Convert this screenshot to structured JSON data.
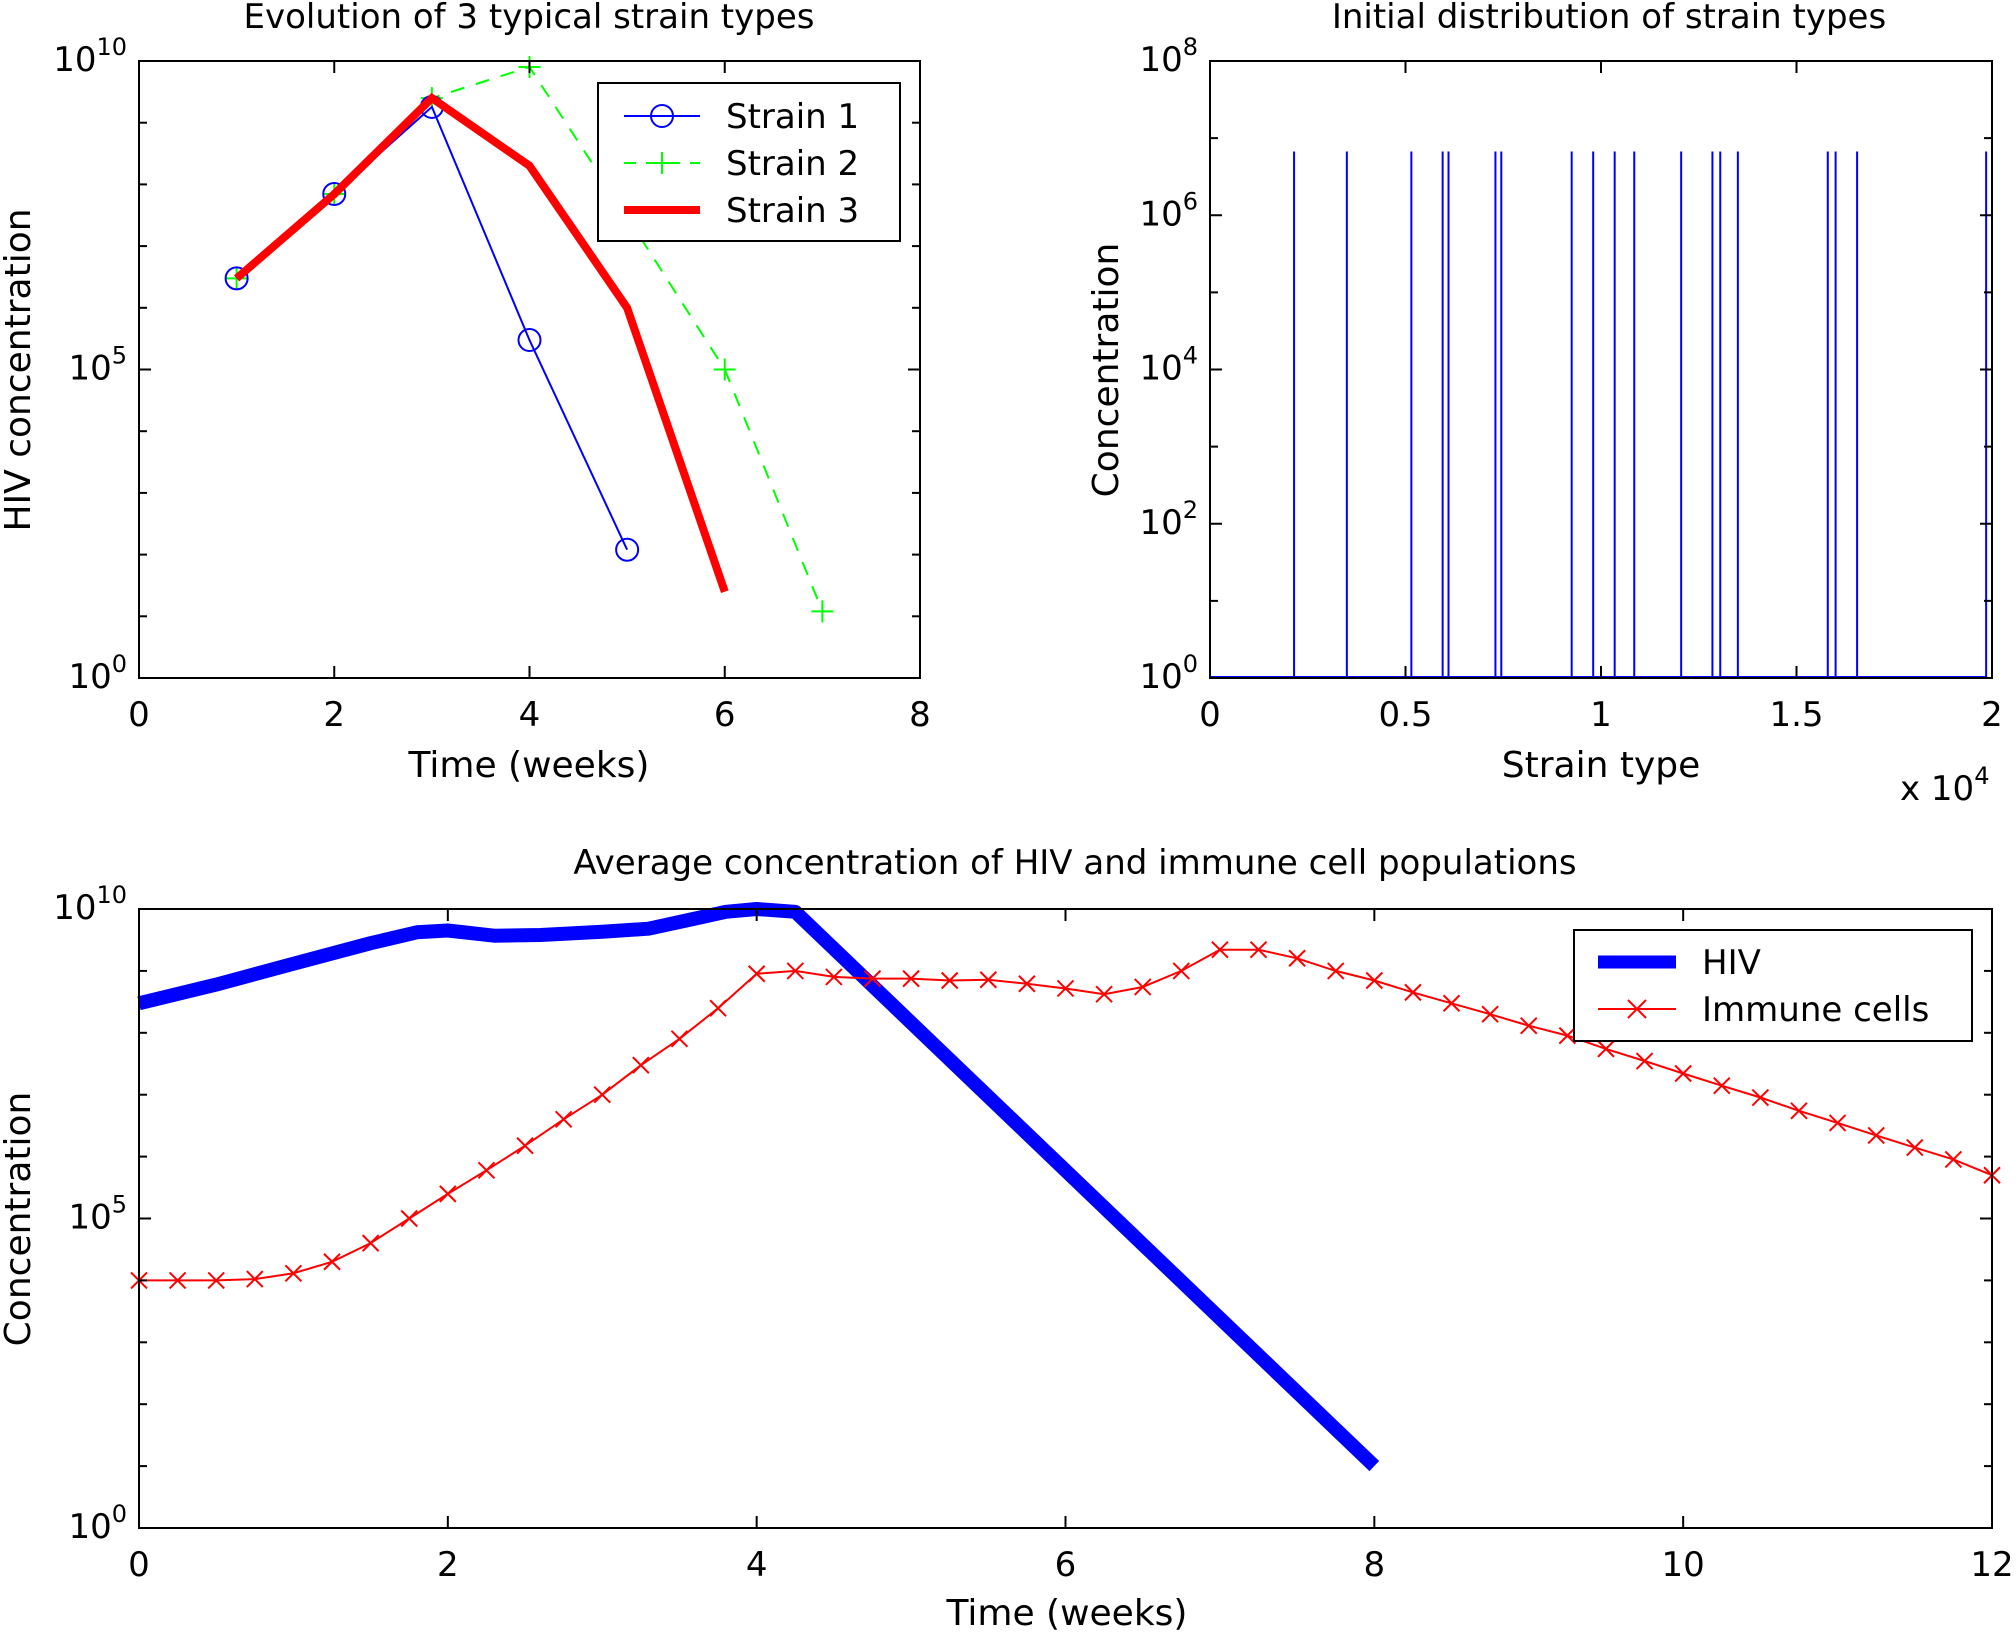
{
  "chart_data": [
    {
      "type": "line",
      "title": "Evolution of 3 typical strain types",
      "xlabel": "Time (weeks)",
      "ylabel": "HIV concentration",
      "xlim": [
        0,
        8
      ],
      "ylim": [
        1,
        10000000000
      ],
      "yscale": "log",
      "xticks": [
        0,
        2,
        4,
        6,
        8
      ],
      "xtick_labels": [
        "0",
        "2",
        "4",
        "6",
        "8"
      ],
      "yticks": [
        {
          "base": "10",
          "exp": "0",
          "value": 1
        },
        {
          "base": "10",
          "exp": "5",
          "value": 100000
        },
        {
          "base": "10",
          "exp": "10",
          "value": 10000000000
        }
      ],
      "grid": false,
      "legend_position": "top-right",
      "series": [
        {
          "name": "Strain 1",
          "color": "#0000ff",
          "style": "solid",
          "marker": "circle",
          "x": [
            1,
            2,
            3,
            4,
            5
          ],
          "y": [
            3000000,
            70000000,
            1800000000,
            300000,
            120
          ]
        },
        {
          "name": "Strain 2",
          "color": "#00ff00",
          "style": "dashed",
          "marker": "plus",
          "x": [
            1,
            2,
            3,
            4,
            5,
            6,
            7
          ],
          "y": [
            3000000,
            70000000,
            2500000000,
            8000000000,
            30000000,
            100000,
            12
          ]
        },
        {
          "name": "Strain 3",
          "color": "#ff0000",
          "style": "solid",
          "marker": "none",
          "x": [
            1,
            2,
            3,
            4,
            5,
            6
          ],
          "y": [
            3000000,
            70000000,
            2500000000,
            200000000,
            1000000,
            25
          ]
        }
      ]
    },
    {
      "type": "bar",
      "title": "Initial distribution of strain types",
      "xlabel": "Strain type",
      "ylabel": "Concentration",
      "xlim": [
        0,
        20000
      ],
      "ylim": [
        1,
        100000000
      ],
      "yscale": "log",
      "x_multiplier": {
        "base": "x 10",
        "exp": "4"
      },
      "xticks": [
        0,
        5000,
        10000,
        15000,
        20000
      ],
      "xtick_labels": [
        "0",
        "0.5",
        "1",
        "1.5",
        "2"
      ],
      "yticks": [
        {
          "base": "10",
          "exp": "0",
          "value": 1
        },
        {
          "base": "10",
          "exp": "2",
          "value": 100
        },
        {
          "base": "10",
          "exp": "4",
          "value": 10000
        },
        {
          "base": "10",
          "exp": "6",
          "value": 1000000
        },
        {
          "base": "10",
          "exp": "8",
          "value": 100000000
        }
      ],
      "grid": false,
      "color": "#0000ff",
      "spike_height": 6700000,
      "spikes_x": [
        2150,
        3500,
        5150,
        5950,
        6100,
        7300,
        7450,
        9250,
        9800,
        10350,
        10850,
        12050,
        12850,
        13050,
        13500,
        15800,
        16000,
        16550,
        19850
      ]
    },
    {
      "type": "line",
      "title": "Average concentration of HIV and immune cell populations",
      "xlabel": "Time (weeks)",
      "ylabel": "Concentration",
      "xlim": [
        0,
        12
      ],
      "ylim": [
        1,
        10000000000
      ],
      "yscale": "log",
      "xticks": [
        0,
        2,
        4,
        6,
        8,
        10,
        12
      ],
      "xtick_labels": [
        "0",
        "2",
        "4",
        "6",
        "8",
        "10",
        "12"
      ],
      "yticks": [
        {
          "base": "10",
          "exp": "0",
          "value": 1
        },
        {
          "base": "10",
          "exp": "5",
          "value": 100000
        },
        {
          "base": "10",
          "exp": "10",
          "value": 10000000000
        }
      ],
      "grid": false,
      "legend_position": "top-right",
      "series": [
        {
          "name": "HIV",
          "color": "#0000ff",
          "style": "solid",
          "marker": "none",
          "x": [
            0,
            0.5,
            1,
            1.5,
            1.8,
            2,
            2.3,
            2.6,
            3,
            3.3,
            3.6,
            3.8,
            4,
            4.25,
            8
          ],
          "y": [
            300000000,
            600000000,
            1300000000,
            2800000000,
            4200000000,
            4500000000,
            3700000000,
            3800000000,
            4300000000,
            4800000000,
            7000000000,
            9000000000,
            10000000000,
            9000000000,
            10
          ]
        },
        {
          "name": "Immune cells",
          "color": "#ff0000",
          "style": "solid",
          "marker": "x",
          "x": [
            0,
            0.25,
            0.5,
            0.75,
            1,
            1.25,
            1.5,
            1.75,
            2,
            2.25,
            2.5,
            2.75,
            3,
            3.25,
            3.5,
            3.75,
            4,
            4.25,
            4.5,
            4.75,
            5,
            5.25,
            5.5,
            5.75,
            6,
            6.25,
            6.5,
            6.75,
            7,
            7.25,
            7.5,
            7.75,
            8,
            8.25,
            8.5,
            8.75,
            9,
            9.25,
            9.5,
            9.75,
            10,
            10.25,
            10.5,
            10.75,
            11,
            11.25,
            11.5,
            11.75,
            12
          ],
          "y": [
            10000,
            10000,
            10000,
            10500,
            13000,
            20000,
            40000,
            100000,
            250000,
            600000,
            1500000,
            4000000,
            10000000,
            30000000,
            80000000,
            250000000,
            900000000,
            1000000000,
            800000000,
            750000000,
            750000000,
            700000000,
            720000000,
            620000000,
            520000000,
            420000000,
            550000000,
            1000000000,
            2200000000,
            2200000000,
            1600000000,
            1000000000,
            700000000,
            450000000,
            300000000,
            200000000,
            130000000,
            90000000,
            55000000,
            35000000,
            22000000,
            14000000,
            9000000,
            5500000,
            3500000,
            2200000,
            1400000,
            900000,
            500000
          ]
        }
      ]
    }
  ]
}
